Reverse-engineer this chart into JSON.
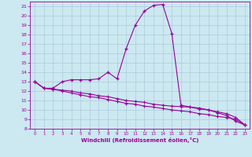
{
  "xlabel": "Windchill (Refroidissement éolien,°C)",
  "background_color": "#cce8f0",
  "line_color": "#990099",
  "grid_color": "#aaccdd",
  "xlim": [
    -0.5,
    23.5
  ],
  "ylim": [
    8,
    21.5
  ],
  "xticks": [
    0,
    1,
    2,
    3,
    4,
    5,
    6,
    7,
    8,
    9,
    10,
    11,
    12,
    13,
    14,
    15,
    16,
    17,
    18,
    19,
    20,
    21,
    22,
    23
  ],
  "yticks": [
    8,
    9,
    10,
    11,
    12,
    13,
    14,
    15,
    16,
    17,
    18,
    19,
    20,
    21
  ],
  "series1_x": [
    0,
    1,
    2,
    3,
    4,
    5,
    6,
    7,
    8,
    9,
    10,
    11,
    12,
    13,
    14,
    15,
    16,
    17,
    18,
    19,
    20,
    21,
    22,
    23
  ],
  "series1_y": [
    13.0,
    12.3,
    12.3,
    13.0,
    13.2,
    13.2,
    13.2,
    13.3,
    14.0,
    13.3,
    16.5,
    19.0,
    20.5,
    21.1,
    21.2,
    18.1,
    10.5,
    10.3,
    10.2,
    10.0,
    9.7,
    9.4,
    8.8,
    8.4
  ],
  "series2_x": [
    0,
    1,
    2,
    3,
    4,
    5,
    6,
    7,
    8,
    9,
    10,
    11,
    12,
    13,
    14,
    15,
    16,
    17,
    18,
    19,
    20,
    21,
    22,
    23
  ],
  "series2_y": [
    13.0,
    12.3,
    12.2,
    12.1,
    12.0,
    11.8,
    11.7,
    11.5,
    11.4,
    11.2,
    11.0,
    10.9,
    10.8,
    10.6,
    10.5,
    10.4,
    10.35,
    10.3,
    10.1,
    10.0,
    9.8,
    9.6,
    9.2,
    8.4
  ],
  "series3_x": [
    0,
    1,
    2,
    3,
    4,
    5,
    6,
    7,
    8,
    9,
    10,
    11,
    12,
    13,
    14,
    15,
    16,
    17,
    18,
    19,
    20,
    21,
    22,
    23
  ],
  "series3_y": [
    13.0,
    12.3,
    12.2,
    12.0,
    11.8,
    11.6,
    11.4,
    11.3,
    11.1,
    10.9,
    10.7,
    10.6,
    10.4,
    10.3,
    10.15,
    10.0,
    9.9,
    9.8,
    9.6,
    9.5,
    9.3,
    9.2,
    9.0,
    8.4
  ]
}
